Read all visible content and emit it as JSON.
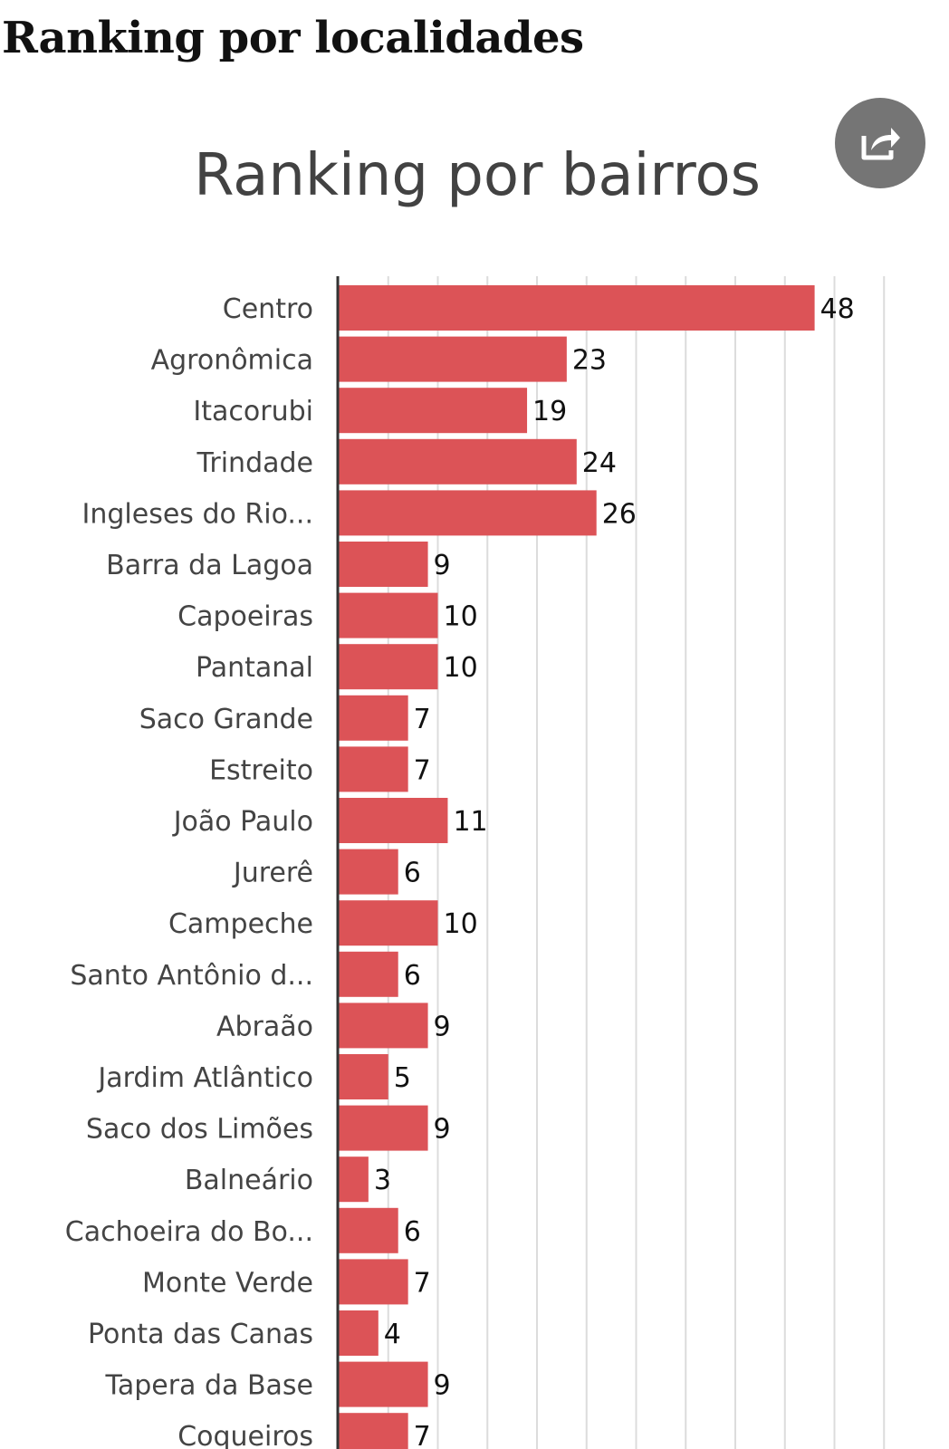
{
  "page": {
    "heading": "Ranking por localidades",
    "share_icon": "share-arrow-icon"
  },
  "colors": {
    "bar": "#dc5357",
    "grid": "#dcdcdc",
    "axis": "#333333",
    "title": "#424242",
    "label": "#444444",
    "value": "#111111",
    "share_bg": "#757575"
  },
  "chart_data": {
    "type": "bar",
    "orientation": "horizontal",
    "title": "Ranking por bairros",
    "xlabel": "",
    "ylabel": "",
    "xlim": [
      0,
      55
    ],
    "grid": true,
    "grid_step": 5,
    "legend": "none",
    "categories": [
      "Centro",
      "Agronômica",
      "Itacorubi",
      "Trindade",
      "Ingleses do Rio...",
      "Barra da Lagoa",
      "Capoeiras",
      "Pantanal",
      "Saco Grande",
      "Estreito",
      "João Paulo",
      "Jurerê",
      "Campeche",
      "Santo Antônio d...",
      "Abraão",
      "Jardim Atlântico",
      "Saco dos Limões",
      "Balneário",
      "Cachoeira do Bo...",
      "Monte Verde",
      "Ponta das Canas",
      "Tapera da Base",
      "Coqueiros"
    ],
    "values": [
      48,
      23,
      19,
      24,
      26,
      9,
      10,
      10,
      7,
      7,
      11,
      6,
      10,
      6,
      9,
      5,
      9,
      3,
      6,
      7,
      4,
      9,
      7
    ]
  }
}
